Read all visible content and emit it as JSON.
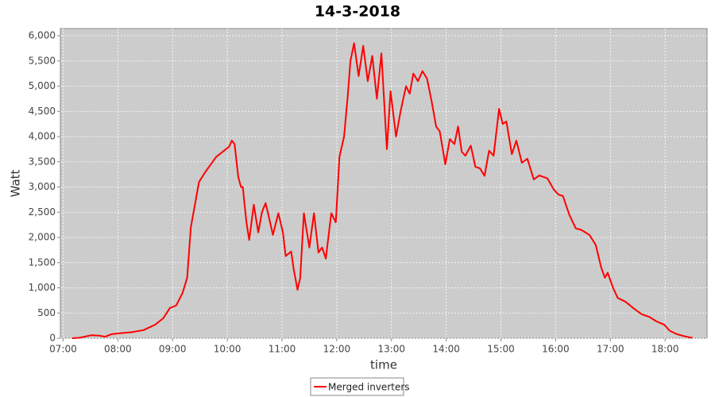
{
  "chart_data": {
    "type": "line",
    "title": "14-3-2018",
    "xlabel": "time",
    "ylabel": "Watt",
    "x": [
      "07:10",
      "07:18",
      "07:31",
      "07:40",
      "07:46",
      "07:53",
      "08:02",
      "08:15",
      "08:28",
      "08:41",
      "08:50",
      "08:57",
      "09:04",
      "09:11",
      "09:16",
      "09:20",
      "09:24",
      "09:29",
      "09:36",
      "09:42",
      "09:48",
      "09:55",
      "10:02",
      "10:05",
      "10:08",
      "10:12",
      "10:15",
      "10:17",
      "10:21",
      "10:24",
      "10:29",
      "10:34",
      "10:38",
      "10:42",
      "10:45",
      "10:50",
      "10:56",
      "11:01",
      "11:04",
      "11:10",
      "11:13",
      "11:17",
      "11:20",
      "11:24",
      "11:30",
      "11:35",
      "11:40",
      "11:44",
      "11:48",
      "11:54",
      "11:59",
      "12:03",
      "12:08",
      "12:12",
      "12:15",
      "12:19",
      "12:24",
      "12:29",
      "12:34",
      "12:39",
      "12:44",
      "12:49",
      "12:55",
      "12:59",
      "13:05",
      "13:10",
      "13:16",
      "13:20",
      "13:24",
      "13:29",
      "13:34",
      "13:39",
      "13:44",
      "13:49",
      "13:53",
      "13:59",
      "14:04",
      "14:09",
      "14:13",
      "14:17",
      "14:21",
      "14:27",
      "14:32",
      "14:37",
      "14:42",
      "14:47",
      "14:52",
      "14:58",
      "15:02",
      "15:06",
      "15:12",
      "15:17",
      "15:23",
      "15:29",
      "15:36",
      "15:42",
      "15:51",
      "15:58",
      "16:03",
      "16:08",
      "16:15",
      "16:22",
      "16:28",
      "16:37",
      "16:44",
      "16:50",
      "16:54",
      "16:57",
      "17:03",
      "17:08",
      "17:17",
      "17:25",
      "17:34",
      "17:43",
      "17:50",
      "17:59",
      "18:05",
      "18:13",
      "18:19",
      "18:26",
      "18:30"
    ],
    "series": [
      {
        "name": "Merged inverters",
        "color": "#ff0000",
        "values": [
          0,
          10,
          60,
          50,
          30,
          80,
          100,
          120,
          160,
          270,
          400,
          600,
          650,
          900,
          1200,
          2200,
          2600,
          3100,
          3300,
          3450,
          3600,
          3700,
          3800,
          3920,
          3850,
          3200,
          3000,
          3000,
          2300,
          1950,
          2650,
          2100,
          2500,
          2680,
          2450,
          2050,
          2480,
          2100,
          1630,
          1720,
          1350,
          960,
          1200,
          2480,
          1800,
          2480,
          1700,
          1800,
          1580,
          2480,
          2300,
          3600,
          4000,
          4800,
          5500,
          5850,
          5200,
          5800,
          5100,
          5600,
          4750,
          5650,
          3750,
          4900,
          4000,
          4500,
          5000,
          4850,
          5250,
          5100,
          5300,
          5150,
          4700,
          4200,
          4100,
          3450,
          3950,
          3850,
          4200,
          3700,
          3620,
          3820,
          3400,
          3370,
          3220,
          3720,
          3620,
          4550,
          4250,
          4300,
          3650,
          3920,
          3480,
          3560,
          3150,
          3230,
          3170,
          2950,
          2850,
          2820,
          2450,
          2180,
          2150,
          2050,
          1850,
          1400,
          1200,
          1300,
          1000,
          800,
          720,
          600,
          480,
          420,
          340,
          270,
          150,
          80,
          50,
          20,
          10
        ]
      }
    ],
    "xlim": [
      "06:57",
      "18:46"
    ],
    "xticks": [
      "07:00",
      "08:00",
      "09:00",
      "10:00",
      "11:00",
      "12:00",
      "13:00",
      "14:00",
      "15:00",
      "16:00",
      "17:00",
      "18:00"
    ],
    "ylim": [
      0,
      6142
    ],
    "yticks": [
      0,
      500,
      {
        "value": 1000,
        "label": "1,000"
      },
      {
        "value": 1500,
        "label": "1,500"
      },
      {
        "value": 2000,
        "label": "2,000"
      },
      {
        "value": 2500,
        "label": "2,500"
      },
      {
        "value": 3000,
        "label": "3,000"
      },
      {
        "value": 3500,
        "label": "3,500"
      },
      {
        "value": 4000,
        "label": "4,000"
      },
      {
        "value": 4500,
        "label": "4,500"
      },
      {
        "value": 5000,
        "label": "5,000"
      },
      {
        "value": 5500,
        "label": "5,500"
      },
      {
        "value": 6000,
        "label": "6,000"
      }
    ],
    "grid": true,
    "legend": "bottom"
  }
}
